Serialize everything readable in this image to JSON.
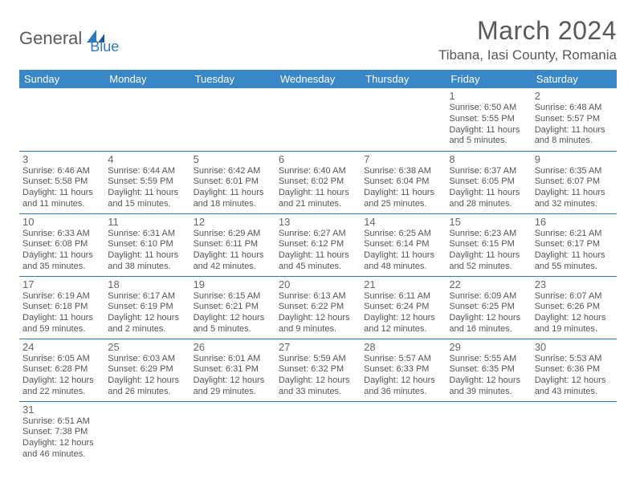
{
  "logo": {
    "part1": "General",
    "part2": "Blue"
  },
  "title": {
    "month": "March 2024",
    "location": "Tibana, Iasi County, Romania"
  },
  "colors": {
    "header_bg": "#3a87c7",
    "header_text": "#ffffff",
    "row_border": "#2f7abf",
    "brand_blue": "#2f7abf",
    "text_gray": "#595959",
    "cell_text": "#555555"
  },
  "weekdays": [
    "Sunday",
    "Monday",
    "Tuesday",
    "Wednesday",
    "Thursday",
    "Friday",
    "Saturday"
  ],
  "weeks": [
    [
      null,
      null,
      null,
      null,
      null,
      {
        "d": "1",
        "sr": "Sunrise: 6:50 AM",
        "ss": "Sunset: 5:55 PM",
        "dl1": "Daylight: 11 hours",
        "dl2": "and 5 minutes."
      },
      {
        "d": "2",
        "sr": "Sunrise: 6:48 AM",
        "ss": "Sunset: 5:57 PM",
        "dl1": "Daylight: 11 hours",
        "dl2": "and 8 minutes."
      }
    ],
    [
      {
        "d": "3",
        "sr": "Sunrise: 6:46 AM",
        "ss": "Sunset: 5:58 PM",
        "dl1": "Daylight: 11 hours",
        "dl2": "and 11 minutes."
      },
      {
        "d": "4",
        "sr": "Sunrise: 6:44 AM",
        "ss": "Sunset: 5:59 PM",
        "dl1": "Daylight: 11 hours",
        "dl2": "and 15 minutes."
      },
      {
        "d": "5",
        "sr": "Sunrise: 6:42 AM",
        "ss": "Sunset: 6:01 PM",
        "dl1": "Daylight: 11 hours",
        "dl2": "and 18 minutes."
      },
      {
        "d": "6",
        "sr": "Sunrise: 6:40 AM",
        "ss": "Sunset: 6:02 PM",
        "dl1": "Daylight: 11 hours",
        "dl2": "and 21 minutes."
      },
      {
        "d": "7",
        "sr": "Sunrise: 6:38 AM",
        "ss": "Sunset: 6:04 PM",
        "dl1": "Daylight: 11 hours",
        "dl2": "and 25 minutes."
      },
      {
        "d": "8",
        "sr": "Sunrise: 6:37 AM",
        "ss": "Sunset: 6:05 PM",
        "dl1": "Daylight: 11 hours",
        "dl2": "and 28 minutes."
      },
      {
        "d": "9",
        "sr": "Sunrise: 6:35 AM",
        "ss": "Sunset: 6:07 PM",
        "dl1": "Daylight: 11 hours",
        "dl2": "and 32 minutes."
      }
    ],
    [
      {
        "d": "10",
        "sr": "Sunrise: 6:33 AM",
        "ss": "Sunset: 6:08 PM",
        "dl1": "Daylight: 11 hours",
        "dl2": "and 35 minutes."
      },
      {
        "d": "11",
        "sr": "Sunrise: 6:31 AM",
        "ss": "Sunset: 6:10 PM",
        "dl1": "Daylight: 11 hours",
        "dl2": "and 38 minutes."
      },
      {
        "d": "12",
        "sr": "Sunrise: 6:29 AM",
        "ss": "Sunset: 6:11 PM",
        "dl1": "Daylight: 11 hours",
        "dl2": "and 42 minutes."
      },
      {
        "d": "13",
        "sr": "Sunrise: 6:27 AM",
        "ss": "Sunset: 6:12 PM",
        "dl1": "Daylight: 11 hours",
        "dl2": "and 45 minutes."
      },
      {
        "d": "14",
        "sr": "Sunrise: 6:25 AM",
        "ss": "Sunset: 6:14 PM",
        "dl1": "Daylight: 11 hours",
        "dl2": "and 48 minutes."
      },
      {
        "d": "15",
        "sr": "Sunrise: 6:23 AM",
        "ss": "Sunset: 6:15 PM",
        "dl1": "Daylight: 11 hours",
        "dl2": "and 52 minutes."
      },
      {
        "d": "16",
        "sr": "Sunrise: 6:21 AM",
        "ss": "Sunset: 6:17 PM",
        "dl1": "Daylight: 11 hours",
        "dl2": "and 55 minutes."
      }
    ],
    [
      {
        "d": "17",
        "sr": "Sunrise: 6:19 AM",
        "ss": "Sunset: 6:18 PM",
        "dl1": "Daylight: 11 hours",
        "dl2": "and 59 minutes."
      },
      {
        "d": "18",
        "sr": "Sunrise: 6:17 AM",
        "ss": "Sunset: 6:19 PM",
        "dl1": "Daylight: 12 hours",
        "dl2": "and 2 minutes."
      },
      {
        "d": "19",
        "sr": "Sunrise: 6:15 AM",
        "ss": "Sunset: 6:21 PM",
        "dl1": "Daylight: 12 hours",
        "dl2": "and 5 minutes."
      },
      {
        "d": "20",
        "sr": "Sunrise: 6:13 AM",
        "ss": "Sunset: 6:22 PM",
        "dl1": "Daylight: 12 hours",
        "dl2": "and 9 minutes."
      },
      {
        "d": "21",
        "sr": "Sunrise: 6:11 AM",
        "ss": "Sunset: 6:24 PM",
        "dl1": "Daylight: 12 hours",
        "dl2": "and 12 minutes."
      },
      {
        "d": "22",
        "sr": "Sunrise: 6:09 AM",
        "ss": "Sunset: 6:25 PM",
        "dl1": "Daylight: 12 hours",
        "dl2": "and 16 minutes."
      },
      {
        "d": "23",
        "sr": "Sunrise: 6:07 AM",
        "ss": "Sunset: 6:26 PM",
        "dl1": "Daylight: 12 hours",
        "dl2": "and 19 minutes."
      }
    ],
    [
      {
        "d": "24",
        "sr": "Sunrise: 6:05 AM",
        "ss": "Sunset: 6:28 PM",
        "dl1": "Daylight: 12 hours",
        "dl2": "and 22 minutes."
      },
      {
        "d": "25",
        "sr": "Sunrise: 6:03 AM",
        "ss": "Sunset: 6:29 PM",
        "dl1": "Daylight: 12 hours",
        "dl2": "and 26 minutes."
      },
      {
        "d": "26",
        "sr": "Sunrise: 6:01 AM",
        "ss": "Sunset: 6:31 PM",
        "dl1": "Daylight: 12 hours",
        "dl2": "and 29 minutes."
      },
      {
        "d": "27",
        "sr": "Sunrise: 5:59 AM",
        "ss": "Sunset: 6:32 PM",
        "dl1": "Daylight: 12 hours",
        "dl2": "and 33 minutes."
      },
      {
        "d": "28",
        "sr": "Sunrise: 5:57 AM",
        "ss": "Sunset: 6:33 PM",
        "dl1": "Daylight: 12 hours",
        "dl2": "and 36 minutes."
      },
      {
        "d": "29",
        "sr": "Sunrise: 5:55 AM",
        "ss": "Sunset: 6:35 PM",
        "dl1": "Daylight: 12 hours",
        "dl2": "and 39 minutes."
      },
      {
        "d": "30",
        "sr": "Sunrise: 5:53 AM",
        "ss": "Sunset: 6:36 PM",
        "dl1": "Daylight: 12 hours",
        "dl2": "and 43 minutes."
      }
    ],
    [
      {
        "d": "31",
        "sr": "Sunrise: 6:51 AM",
        "ss": "Sunset: 7:38 PM",
        "dl1": "Daylight: 12 hours",
        "dl2": "and 46 minutes."
      },
      null,
      null,
      null,
      null,
      null,
      null
    ]
  ]
}
